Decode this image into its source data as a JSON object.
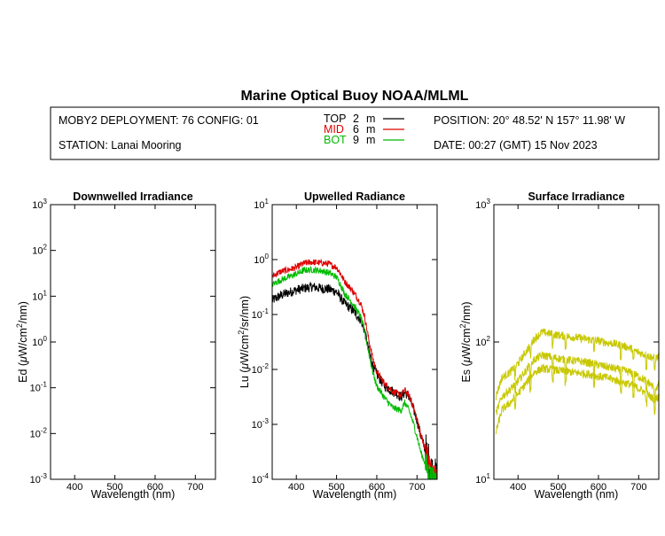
{
  "header": {
    "title": "Marine Optical Buoy NOAA/MLML",
    "deployment": "MOBY2 DEPLOYMENT: 76 CONFIG: 01",
    "station": "STATION: Lanai Mooring",
    "position": "POSITION: 20° 48.52' N   157° 11.98' W",
    "date": "DATE: 00:27 (GMT) 15 Nov 2023",
    "legend": [
      {
        "label": "TOP",
        "depth": "2",
        "unit": "m",
        "color": "#000000"
      },
      {
        "label": "MID",
        "depth": "6",
        "unit": "m",
        "color": "#dd0000"
      },
      {
        "label": "BOT",
        "depth": "9",
        "unit": "m",
        "color": "#00bb00"
      }
    ]
  },
  "chart_data": [
    {
      "type": "line",
      "title": "Downwelled Irradiance",
      "xlabel": "Wavelength (nm)",
      "ylabel_parts": [
        "Ed  (",
        "μ",
        "W/cm",
        "2",
        "/nm)"
      ],
      "xlim": [
        340,
        750
      ],
      "xticks": [
        400,
        500,
        600,
        700
      ],
      "yscale": "log",
      "ylim_exp": [
        -3,
        3
      ],
      "series": []
    },
    {
      "type": "line",
      "title": "Upwelled Radiance",
      "xlabel": "Wavelength (nm)",
      "ylabel_parts": [
        "Lu  (",
        "μ",
        "W/cm",
        "2",
        "/sr/nm)"
      ],
      "xlim": [
        340,
        750
      ],
      "xticks": [
        400,
        500,
        600,
        700
      ],
      "yscale": "log",
      "ylim_exp": [
        -4,
        1
      ],
      "series": [
        {
          "color": "#000000",
          "noise": 0.18,
          "x": [
            340,
            360,
            380,
            400,
            420,
            440,
            460,
            480,
            500,
            510,
            520,
            540,
            560,
            570,
            580,
            590,
            600,
            620,
            640,
            660,
            670,
            680,
            690,
            700,
            710,
            720,
            730,
            740,
            750
          ],
          "y": [
            0.18,
            0.22,
            0.25,
            0.28,
            0.3,
            0.32,
            0.3,
            0.29,
            0.26,
            0.2,
            0.16,
            0.12,
            0.08,
            0.05,
            0.022,
            0.012,
            0.008,
            0.005,
            0.004,
            0.0032,
            0.0038,
            0.0032,
            0.002,
            0.0012,
            0.0006,
            0.00035,
            0.0002,
            0.00012,
            0.0001
          ]
        },
        {
          "color": "#dd0000",
          "noise": 0.12,
          "x": [
            340,
            360,
            380,
            400,
            420,
            440,
            460,
            480,
            500,
            510,
            520,
            540,
            560,
            570,
            580,
            590,
            600,
            620,
            640,
            660,
            670,
            680,
            690,
            700,
            710,
            720,
            730,
            740,
            750
          ],
          "y": [
            0.5,
            0.6,
            0.65,
            0.72,
            0.86,
            0.9,
            0.87,
            0.84,
            0.72,
            0.55,
            0.4,
            0.27,
            0.16,
            0.09,
            0.035,
            0.016,
            0.009,
            0.0055,
            0.004,
            0.0034,
            0.0042,
            0.0033,
            0.0022,
            0.0012,
            0.00065,
            0.00035,
            0.0002,
            0.00012,
            0.0001
          ]
        },
        {
          "color": "#00bb00",
          "noise": 0.12,
          "x": [
            340,
            360,
            380,
            400,
            420,
            440,
            460,
            480,
            500,
            510,
            520,
            540,
            560,
            570,
            580,
            590,
            600,
            620,
            640,
            660,
            670,
            680,
            690,
            700,
            710,
            720,
            730,
            740,
            750
          ],
          "y": [
            0.35,
            0.42,
            0.48,
            0.55,
            0.64,
            0.65,
            0.63,
            0.58,
            0.48,
            0.35,
            0.24,
            0.16,
            0.09,
            0.05,
            0.02,
            0.009,
            0.005,
            0.003,
            0.002,
            0.0018,
            0.0025,
            0.0018,
            0.0011,
            0.0006,
            0.0003,
            0.0002,
            0.00012,
            0.0001,
            0.0001
          ]
        }
      ]
    },
    {
      "type": "line",
      "title": "Surface Irradiance",
      "xlabel": "Wavelength (nm)",
      "ylabel_parts": [
        "Es  (",
        "μ",
        "W/cm",
        "2",
        "/nm)"
      ],
      "xlim": [
        340,
        750
      ],
      "xticks": [
        400,
        500,
        600,
        700
      ],
      "yscale": "log",
      "ylim_exp": [
        1,
        3
      ],
      "series": [
        {
          "color": "#c8c800",
          "noise": 0.06,
          "x": [
            345,
            360,
            380,
            400,
            420,
            440,
            460,
            480,
            500,
            520,
            540,
            560,
            580,
            600,
            620,
            640,
            660,
            680,
            700,
            720,
            740,
            750
          ],
          "y": [
            40,
            55,
            60,
            70,
            85,
            105,
            118,
            115,
            112,
            110,
            108,
            106,
            104,
            102,
            99,
            97,
            94,
            90,
            84,
            80,
            76,
            78
          ]
        },
        {
          "color": "#c8c800",
          "noise": 0.06,
          "x": [
            345,
            360,
            380,
            400,
            420,
            440,
            460,
            480,
            500,
            520,
            540,
            560,
            580,
            600,
            620,
            640,
            660,
            680,
            700,
            720,
            740,
            750
          ],
          "y": [
            30,
            40,
            45,
            52,
            62,
            74,
            80,
            78,
            76,
            74,
            73,
            72,
            70,
            68,
            66,
            64,
            62,
            60,
            56,
            52,
            46,
            48
          ]
        },
        {
          "color": "#c8c800",
          "noise": 0.06,
          "x": [
            345,
            360,
            380,
            400,
            420,
            440,
            460,
            480,
            500,
            520,
            540,
            560,
            580,
            600,
            620,
            640,
            660,
            680,
            700,
            720,
            740,
            750
          ],
          "y": [
            22,
            32,
            36,
            42,
            50,
            60,
            64,
            63,
            62,
            61,
            60,
            59,
            58,
            56,
            55,
            53,
            51,
            49,
            46,
            42,
            38,
            40
          ]
        }
      ]
    }
  ]
}
